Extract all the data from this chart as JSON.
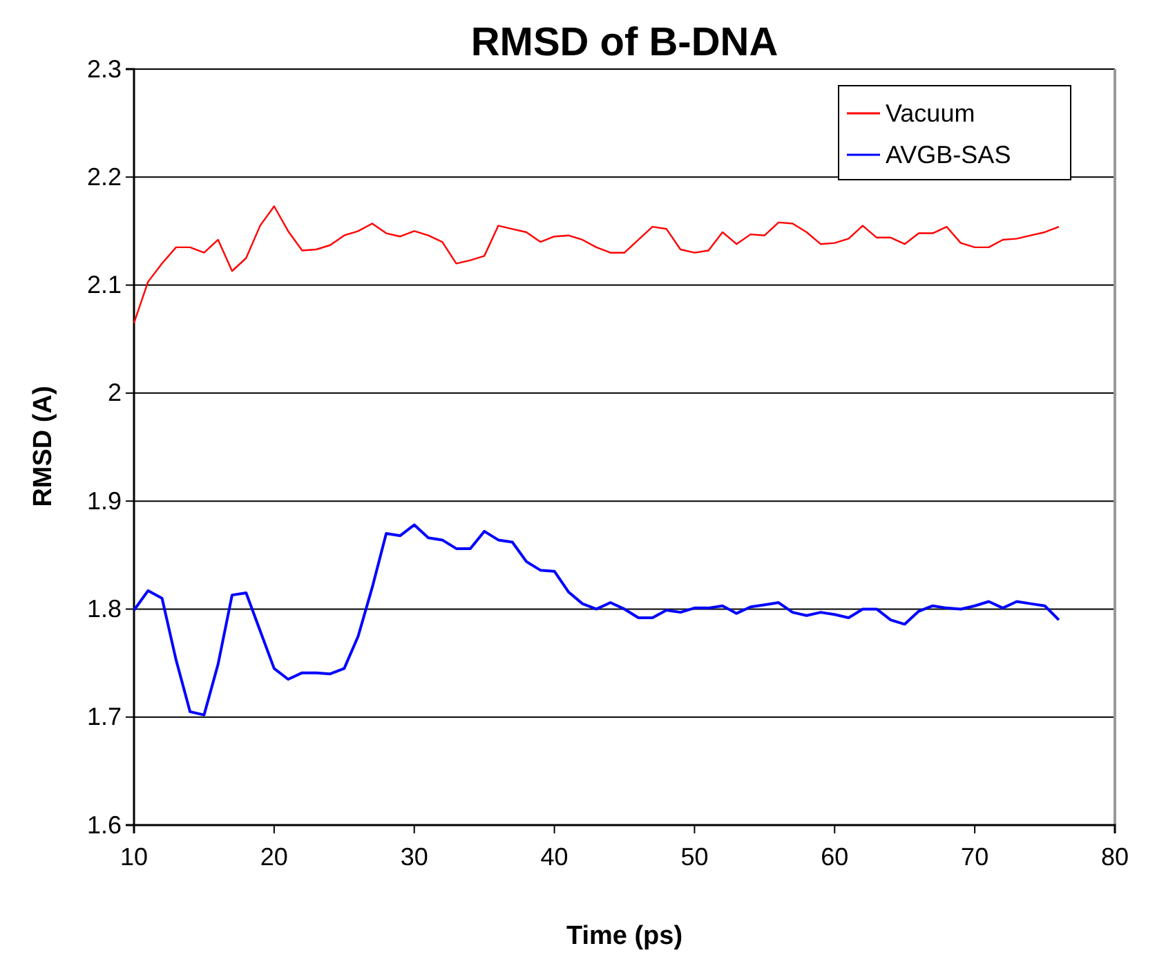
{
  "chart_data": {
    "type": "line",
    "title": "RMSD of B-DNA",
    "xlabel": "Time (ps)",
    "ylabel": "RMSD (A)",
    "x": [
      10,
      11,
      12,
      13,
      14,
      15,
      16,
      17,
      18,
      19,
      20,
      21,
      22,
      23,
      24,
      25,
      26,
      27,
      28,
      29,
      30,
      31,
      32,
      33,
      34,
      35,
      36,
      37,
      38,
      39,
      40,
      41,
      42,
      43,
      44,
      45,
      46,
      47,
      48,
      49,
      50,
      51,
      52,
      53,
      54,
      55,
      56,
      57,
      58,
      59,
      60,
      61,
      62,
      63,
      64,
      65,
      66,
      67,
      68,
      69,
      70,
      71,
      72,
      73,
      74,
      75,
      76
    ],
    "series": [
      {
        "name": "Vacuum",
        "color": "#ff0000",
        "values": [
          2.065,
          2.103,
          2.12,
          2.135,
          2.135,
          2.13,
          2.142,
          2.113,
          2.125,
          2.155,
          2.173,
          2.15,
          2.132,
          2.133,
          2.137,
          2.146,
          2.15,
          2.157,
          2.148,
          2.145,
          2.15,
          2.146,
          2.14,
          2.12,
          2.123,
          2.127,
          2.155,
          2.152,
          2.149,
          2.14,
          2.145,
          2.146,
          2.142,
          2.135,
          2.13,
          2.13,
          2.142,
          2.154,
          2.152,
          2.133,
          2.13,
          2.132,
          2.149,
          2.138,
          2.147,
          2.146,
          2.158,
          2.157,
          2.149,
          2.138,
          2.139,
          2.143,
          2.155,
          2.144,
          2.144,
          2.138,
          2.148,
          2.148,
          2.154,
          2.139,
          2.135,
          2.135,
          2.142,
          2.143,
          2.146,
          2.149,
          2.154
        ]
      },
      {
        "name": "AVGB-SAS",
        "color": "#0000ff",
        "values": [
          1.799,
          1.817,
          1.81,
          1.753,
          1.705,
          1.702,
          1.749,
          1.813,
          1.815,
          1.78,
          1.745,
          1.735,
          1.741,
          1.741,
          1.74,
          1.745,
          1.775,
          1.82,
          1.87,
          1.868,
          1.878,
          1.866,
          1.864,
          1.856,
          1.856,
          1.872,
          1.864,
          1.862,
          1.844,
          1.836,
          1.835,
          1.816,
          1.805,
          1.8,
          1.806,
          1.8,
          1.792,
          1.792,
          1.799,
          1.797,
          1.801,
          1.801,
          1.803,
          1.796,
          1.802,
          1.804,
          1.806,
          1.797,
          1.794,
          1.797,
          1.795,
          1.792,
          1.8,
          1.8,
          1.79,
          1.786,
          1.798,
          1.803,
          1.801,
          1.8,
          1.803,
          1.807,
          1.801,
          1.807,
          1.805,
          1.803,
          1.79
        ]
      }
    ],
    "xlim": [
      10,
      80
    ],
    "xticks": [
      10,
      20,
      30,
      40,
      50,
      60,
      70,
      80
    ],
    "ylim": [
      1.6,
      2.3
    ],
    "yticks": [
      1.6,
      1.7,
      1.8,
      1.9,
      2,
      2.1,
      2.2,
      2.3
    ],
    "grid": "y",
    "legend": "top right",
    "line_style": "solid",
    "marker": "none"
  }
}
